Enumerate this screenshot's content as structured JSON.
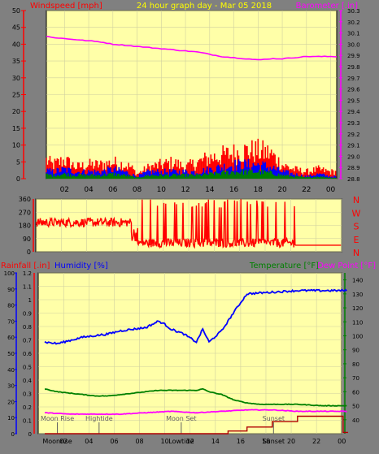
{
  "header": {
    "left_label": "Windspeed [mph]",
    "title": "24 hour graph day - Mar 05 2018",
    "right_label": "Barometer [.in]"
  },
  "colors": {
    "plot_bg": "#ffffa8",
    "frame_bg": "#808080",
    "grid": "#d0d0a0",
    "red": "#ff0000",
    "blue": "#0000ff",
    "green": "#008000",
    "magenta": "#ff00ff",
    "darkred": "#b00000",
    "yellow_title": "#ffff00",
    "gray_text": "#606060"
  },
  "chart_data": [
    {
      "type": "line",
      "name": "wind_baro",
      "x_ticks": [
        "02",
        "04",
        "06",
        "08",
        "10",
        "12",
        "14",
        "16",
        "18",
        "20",
        "22",
        "00"
      ],
      "left_axis": {
        "label": "Windspeed [mph]",
        "ylim": [
          0,
          50
        ],
        "ticks": [
          0,
          5,
          10,
          15,
          20,
          25,
          30,
          35,
          40,
          45,
          50
        ]
      },
      "right_axis": {
        "label": "Barometer [.in]",
        "ylim": [
          28.8,
          30.3
        ],
        "ticks": [
          "28.8",
          "28.9",
          "29.0",
          "29.1",
          "29.2",
          "29.3",
          "29.4",
          "29.5",
          "29.6",
          "29.7",
          "29.8",
          "29.9",
          "30.0",
          "30.1",
          "30.2",
          "30.3"
        ]
      },
      "series": [
        {
          "color": "magenta",
          "axis": "right",
          "points": [
            [
              0,
              30.08
            ],
            [
              0.5,
              30.07
            ],
            [
              1,
              30.06
            ],
            [
              2,
              30.05
            ],
            [
              3,
              30.04
            ],
            [
              4,
              30.03
            ],
            [
              5,
              30.02
            ],
            [
              6,
              30.0
            ],
            [
              7,
              29.99
            ],
            [
              8,
              29.98
            ],
            [
              9,
              29.97
            ],
            [
              10,
              29.96
            ],
            [
              11,
              29.95
            ],
            [
              12,
              29.94
            ],
            [
              13,
              29.93
            ],
            [
              14,
              29.91
            ],
            [
              15,
              29.89
            ],
            [
              16,
              29.88
            ],
            [
              17,
              29.87
            ],
            [
              18,
              29.86
            ],
            [
              19,
              29.87
            ],
            [
              20,
              29.87
            ],
            [
              21,
              29.88
            ],
            [
              22,
              29.89
            ],
            [
              23,
              29.89
            ],
            [
              24,
              29.89
            ]
          ]
        },
        {
          "color": "red",
          "axis": "left",
          "kind": "bars",
          "step": 0.1,
          "envelope": [
            [
              0,
              10
            ],
            [
              1,
              6
            ],
            [
              2,
              8
            ],
            [
              3,
              5
            ],
            [
              4,
              6
            ],
            [
              5,
              6
            ],
            [
              6,
              7
            ],
            [
              7,
              6
            ],
            [
              7.5,
              5
            ],
            [
              8,
              2
            ],
            [
              9,
              5
            ],
            [
              10,
              6
            ],
            [
              11,
              7
            ],
            [
              12,
              5
            ],
            [
              13,
              7
            ],
            [
              14,
              9
            ],
            [
              15,
              10
            ],
            [
              16,
              11
            ],
            [
              17,
              12
            ],
            [
              18,
              12
            ],
            [
              19,
              11
            ],
            [
              20,
              6
            ],
            [
              21,
              4
            ],
            [
              22,
              3
            ],
            [
              23,
              4
            ],
            [
              24,
              3
            ]
          ]
        },
        {
          "color": "blue",
          "axis": "left",
          "kind": "bars",
          "step": 0.1,
          "envelope": [
            [
              0,
              4
            ],
            [
              1,
              3
            ],
            [
              2,
              4
            ],
            [
              3,
              3
            ],
            [
              4,
              3
            ],
            [
              5,
              3
            ],
            [
              6,
              4
            ],
            [
              7,
              3
            ],
            [
              8,
              1
            ],
            [
              9,
              3
            ],
            [
              10,
              3
            ],
            [
              11,
              3
            ],
            [
              12,
              3
            ],
            [
              13,
              3
            ],
            [
              14,
              4
            ],
            [
              15,
              5
            ],
            [
              16,
              6
            ],
            [
              17,
              6
            ],
            [
              18,
              6
            ],
            [
              19,
              5
            ],
            [
              20,
              3
            ],
            [
              21,
              2
            ],
            [
              22,
              1
            ],
            [
              23,
              2
            ],
            [
              24,
              1
            ]
          ]
        },
        {
          "color": "green",
          "axis": "left",
          "kind": "bars",
          "step": 0.1,
          "envelope": [
            [
              0,
              2
            ],
            [
              1,
              1.5
            ],
            [
              2,
              2
            ],
            [
              3,
              1.5
            ],
            [
              4,
              1.5
            ],
            [
              5,
              1.5
            ],
            [
              6,
              2
            ],
            [
              7,
              1.5
            ],
            [
              8,
              0.5
            ],
            [
              9,
              1.5
            ],
            [
              10,
              1.5
            ],
            [
              11,
              1.5
            ],
            [
              12,
              1.5
            ],
            [
              13,
              1.5
            ],
            [
              14,
              2
            ],
            [
              15,
              2.5
            ],
            [
              16,
              3
            ],
            [
              17,
              3
            ],
            [
              18,
              3
            ],
            [
              19,
              2.5
            ],
            [
              20,
              1.5
            ],
            [
              21,
              1
            ],
            [
              22,
              0.5
            ],
            [
              23,
              1
            ],
            [
              24,
              0.5
            ]
          ]
        }
      ]
    },
    {
      "type": "line",
      "name": "wind_direction",
      "y_ticks": [
        0,
        90,
        180,
        270,
        360
      ],
      "ylim": [
        0,
        360
      ],
      "right_labels": [
        "N",
        "W",
        "S",
        "E",
        "N"
      ],
      "series": [
        {
          "color": "red",
          "segments": [
            {
              "from": 0,
              "to": 7.5,
              "mode": "noisy",
              "base": 200,
              "amp": 60
            },
            {
              "from": 7.5,
              "to": 8,
              "mode": "noisy",
              "base": 120,
              "amp": 100
            },
            {
              "from": 8,
              "to": 20.4,
              "mode": "switching",
              "base": 60,
              "amp": 300
            },
            {
              "from": 20.4,
              "to": 24,
              "mode": "flat",
              "base": 45,
              "amp": 0
            }
          ]
        }
      ]
    },
    {
      "type": "line",
      "name": "rain_humidity_temp",
      "x_ticks": [
        "02",
        "04",
        "06",
        "08",
        "10",
        "12",
        "14",
        "16",
        "18",
        "20",
        "22",
        "00"
      ],
      "left_labels": {
        "rain": "Rainfall [.in]",
        "humidity": "Humidity [%]"
      },
      "right_labels": {
        "temperature": "Temperature [°F]",
        "dewpoint": "Dew Point [°F]"
      },
      "rain_axis": {
        "ylim": [
          0,
          1.2
        ],
        "ticks": [
          "0",
          "0.1",
          "0.2",
          "0.3",
          "0.4",
          "0.5",
          "0.6",
          "0.7",
          "0.8",
          "0.9",
          "1",
          "1.1",
          "1.2"
        ]
      },
      "humidity_axis": {
        "ylim": [
          0,
          100
        ],
        "ticks": [
          0,
          10,
          20,
          30,
          40,
          50,
          60,
          70,
          80,
          90,
          100
        ]
      },
      "temp_axis": {
        "ylim": [
          30,
          145
        ],
        "ticks": [
          40,
          50,
          60,
          70,
          80,
          90,
          100,
          110,
          120,
          130,
          140
        ]
      },
      "series": [
        {
          "color": "blue",
          "axis": "humidity",
          "points": [
            [
              0,
              57
            ],
            [
              1,
              56
            ],
            [
              2,
              58
            ],
            [
              3,
              60
            ],
            [
              4,
              61
            ],
            [
              5,
              62
            ],
            [
              6,
              64
            ],
            [
              7,
              65
            ],
            [
              8,
              66
            ],
            [
              9,
              70
            ],
            [
              9.5,
              68
            ],
            [
              10,
              65
            ],
            [
              11,
              62
            ],
            [
              12,
              57
            ],
            [
              12.5,
              65
            ],
            [
              13,
              57
            ],
            [
              14,
              64
            ],
            [
              15,
              76
            ],
            [
              16,
              87
            ],
            [
              18,
              88
            ],
            [
              20,
              89
            ],
            [
              22,
              89
            ],
            [
              24,
              89
            ]
          ]
        },
        {
          "color": "green",
          "axis": "temp",
          "points": [
            [
              0,
              62
            ],
            [
              1,
              60
            ],
            [
              2,
              59
            ],
            [
              3,
              58
            ],
            [
              4,
              57
            ],
            [
              5,
              57
            ],
            [
              6,
              58
            ],
            [
              7,
              59
            ],
            [
              8,
              60
            ],
            [
              9,
              61
            ],
            [
              10,
              61
            ],
            [
              11,
              61
            ],
            [
              12,
              61
            ],
            [
              12.5,
              62
            ],
            [
              13,
              60
            ],
            [
              14,
              58
            ],
            [
              15,
              54
            ],
            [
              16,
              52
            ],
            [
              17,
              51
            ],
            [
              18,
              51
            ],
            [
              20,
              51
            ],
            [
              22,
              50
            ],
            [
              24,
              50
            ]
          ]
        },
        {
          "color": "magenta",
          "axis": "temp",
          "points": [
            [
              0,
              45
            ],
            [
              2,
              44
            ],
            [
              4,
              44
            ],
            [
              6,
              44
            ],
            [
              8,
              45
            ],
            [
              10,
              46
            ],
            [
              12,
              45
            ],
            [
              14,
              46
            ],
            [
              16,
              47
            ],
            [
              18,
              47
            ],
            [
              20,
              46
            ],
            [
              22,
              46
            ],
            [
              24,
              46
            ]
          ]
        },
        {
          "color": "darkred",
          "axis": "rain",
          "kind": "step",
          "points": [
            [
              0,
              0
            ],
            [
              14.5,
              0
            ],
            [
              14.5,
              0.02
            ],
            [
              16,
              0.02
            ],
            [
              16,
              0.05
            ],
            [
              18,
              0.05
            ],
            [
              18,
              0.09
            ],
            [
              20,
              0.09
            ],
            [
              20,
              0.13
            ],
            [
              23.6,
              0.13
            ],
            [
              23.6,
              0.01
            ],
            [
              24,
              0.01
            ]
          ]
        }
      ],
      "annotations": [
        {
          "label": "Moon Rise",
          "x": 1.5
        },
        {
          "label": "Hightide",
          "x": 4.8
        },
        {
          "label": "Moon Set",
          "x": 11.3
        },
        {
          "label": "Sunset",
          "x": 18.6
        }
      ],
      "bottom_labels": [
        {
          "label": "Moonrise",
          "x": 1.5
        },
        {
          "label": "Lowtide",
          "x": 11.3
        },
        {
          "label": "Sunset",
          "x": 18.6
        }
      ]
    }
  ]
}
